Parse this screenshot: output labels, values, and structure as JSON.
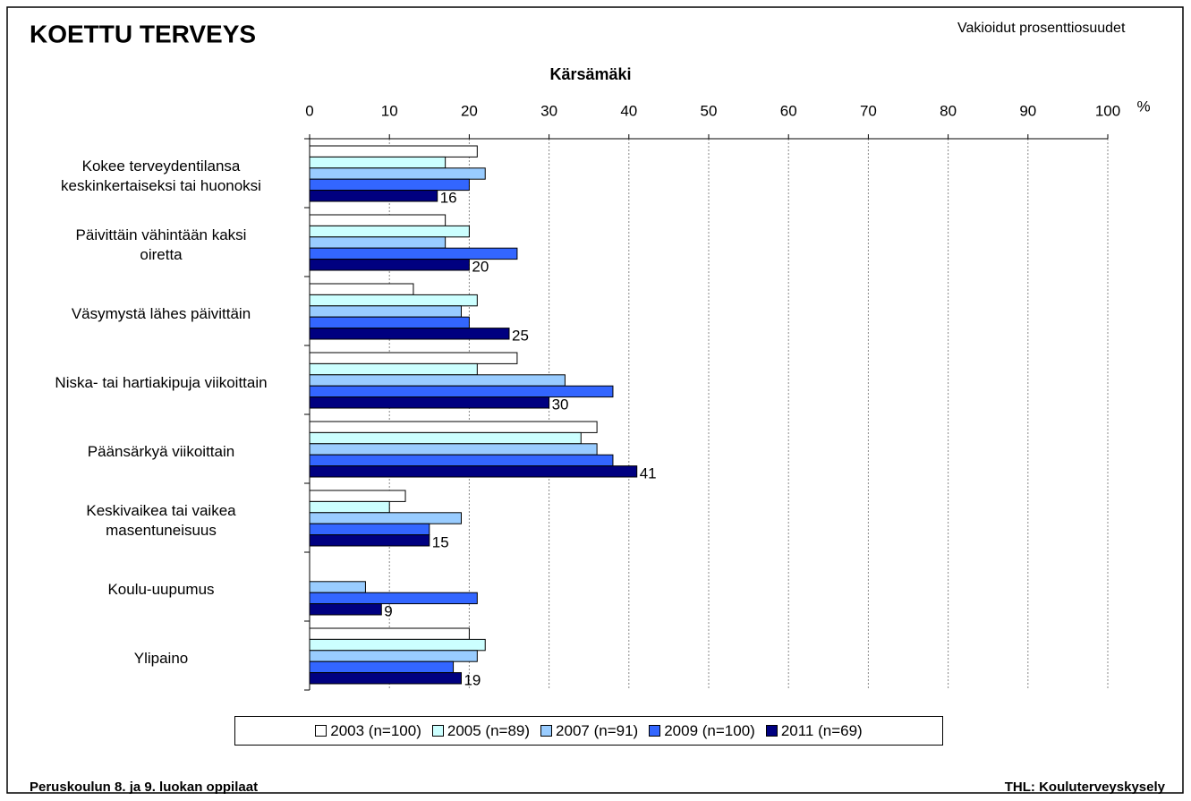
{
  "chart_data": {
    "type": "bar",
    "orientation": "horizontal",
    "title": "KOETTU TERVEYS",
    "subtitle": "Vakioidut prosenttiosuudet",
    "chart_title": "Kärsämäki",
    "x_unit": "%",
    "footer_left": "Peruskoulun 8. ja 9. luokan oppilaat",
    "footer_right": "THL: Kouluterveyskysely",
    "categories": [
      "Kokee terveydentilansa\nkeskinkertaiseksi tai huonoksi",
      "Päivittäin vähintään kaksi\noiretta",
      "Väsymystä lähes päivittäin",
      "Niska- tai hartiakipuja viikoittain",
      "Päänsärkyä viikoittain",
      "Keskivaikea tai vaikea\nmasentuneisuus",
      "Koulu-uupumus",
      "Ylipaino"
    ],
    "series": [
      {
        "name": "2003 (n=100)",
        "color": "#ffffff",
        "values": [
          21,
          17,
          13,
          26,
          36,
          12,
          null,
          20
        ]
      },
      {
        "name": "2005 (n=89)",
        "color": "#ccffff",
        "values": [
          17,
          20,
          21,
          21,
          34,
          10,
          null,
          22
        ]
      },
      {
        "name": "2007 (n=91)",
        "color": "#99ccff",
        "values": [
          22,
          17,
          19,
          32,
          36,
          19,
          7,
          21
        ]
      },
      {
        "name": "2009 (n=100)",
        "color": "#3366ff",
        "values": [
          20,
          26,
          20,
          38,
          38,
          15,
          21,
          18
        ]
      },
      {
        "name": "2011 (n=69)",
        "color": "#000080",
        "values": [
          16,
          20,
          25,
          30,
          41,
          15,
          9,
          19
        ],
        "show_labels": true
      }
    ],
    "xlim": [
      0,
      100
    ],
    "xticks": [
      0,
      10,
      20,
      30,
      40,
      50,
      60,
      70,
      80,
      90,
      100
    ],
    "grid": true,
    "legend": "bottom"
  }
}
